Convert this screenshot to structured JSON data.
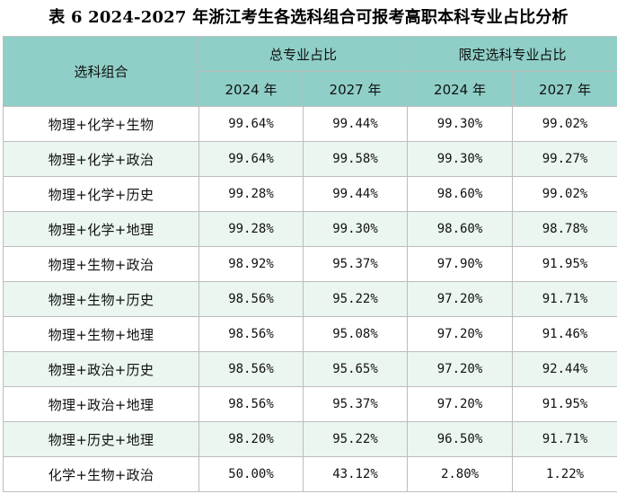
{
  "title": "表 6  2024-2027 年浙江考生各选科组合可报考高职本科专业占比分析",
  "header": {
    "combo_label": "选科组合",
    "group_total": "总专业占比",
    "group_limited": "限定选科专业占比",
    "y2024": "2024 年",
    "y2027": "2027 年"
  },
  "rows": [
    {
      "combo": "物理+化学+生物",
      "total_2024": "99.64%",
      "total_2027": "99.44%",
      "limited_2024": "99.30%",
      "limited_2027": "99.02%"
    },
    {
      "combo": "物理+化学+政治",
      "total_2024": "99.64%",
      "total_2027": "99.58%",
      "limited_2024": "99.30%",
      "limited_2027": "99.27%"
    },
    {
      "combo": "物理+化学+历史",
      "total_2024": "99.28%",
      "total_2027": "99.44%",
      "limited_2024": "98.60%",
      "limited_2027": "99.02%"
    },
    {
      "combo": "物理+化学+地理",
      "total_2024": "99.28%",
      "total_2027": "99.30%",
      "limited_2024": "98.60%",
      "limited_2027": "98.78%"
    },
    {
      "combo": "物理+生物+政治",
      "total_2024": "98.92%",
      "total_2027": "95.37%",
      "limited_2024": "97.90%",
      "limited_2027": "91.95%"
    },
    {
      "combo": "物理+生物+历史",
      "total_2024": "98.56%",
      "total_2027": "95.22%",
      "limited_2024": "97.20%",
      "limited_2027": "91.71%"
    },
    {
      "combo": "物理+生物+地理",
      "total_2024": "98.56%",
      "total_2027": "95.08%",
      "limited_2024": "97.20%",
      "limited_2027": "91.46%"
    },
    {
      "combo": "物理+政治+历史",
      "total_2024": "98.56%",
      "total_2027": "95.65%",
      "limited_2024": "97.20%",
      "limited_2027": "92.44%"
    },
    {
      "combo": "物理+政治+地理",
      "total_2024": "98.56%",
      "total_2027": "95.37%",
      "limited_2024": "97.20%",
      "limited_2027": "91.95%"
    },
    {
      "combo": "物理+历史+地理",
      "total_2024": "98.20%",
      "total_2027": "95.22%",
      "limited_2024": "96.50%",
      "limited_2027": "91.71%"
    },
    {
      "combo": "化学+生物+政治",
      "total_2024": "50.00%",
      "total_2027": "43.12%",
      "limited_2024": "2.80%",
      "limited_2027": "1.22%"
    }
  ],
  "colors": {
    "header_bg": "#8fcfc7",
    "stripe_bg": "#eaf6ef"
  }
}
